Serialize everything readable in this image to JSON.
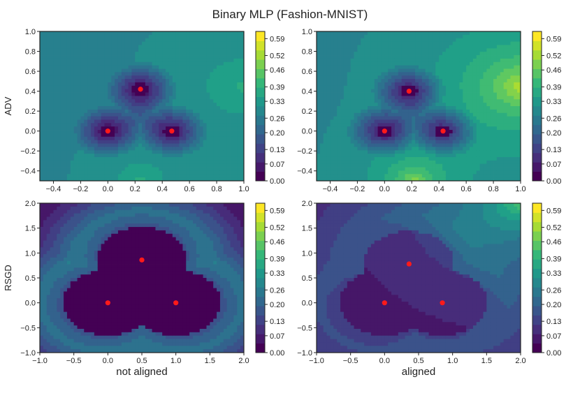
{
  "figure": {
    "title": "Binary MLP (Fashion-MNIST)",
    "colors": {
      "axis": "#222222",
      "marker": "#ff1a1a",
      "background": "#ffffff"
    }
  },
  "chart_data": [
    {
      "type": "heatmap",
      "panel": "top-left",
      "row_label": "ADV",
      "col_label": "",
      "xlim": [
        -0.5,
        1.0
      ],
      "ylim": [
        -0.5,
        1.0
      ],
      "xticks": [
        "−0.4",
        "−0.2",
        "0.0",
        "0.2",
        "0.4",
        "0.6",
        "0.8",
        "1.0"
      ],
      "xtick_values": [
        -0.4,
        -0.2,
        0.0,
        0.2,
        0.4,
        0.6,
        0.8,
        1.0
      ],
      "yticks": [
        "−0.4",
        "−0.2",
        "0.0",
        "0.2",
        "0.4",
        "0.6",
        "0.8",
        "1.0"
      ],
      "ytick_values": [
        -0.4,
        -0.2,
        0.0,
        0.2,
        0.4,
        0.6,
        0.8,
        1.0
      ],
      "points": [
        {
          "x": 0.0,
          "y": 0.0
        },
        {
          "x": 0.47,
          "y": 0.0
        },
        {
          "x": 0.24,
          "y": 0.42
        }
      ],
      "colorbar": {
        "ticks": [
          "0.00",
          "0.07",
          "0.13",
          "0.20",
          "0.26",
          "0.33",
          "0.39",
          "0.46",
          "0.52",
          "0.59"
        ],
        "min": 0.0,
        "max": 0.62
      },
      "field": {
        "base": 0.3,
        "center_bump": -0.12,
        "corner_tr": 0.1,
        "corner_bl": 0.0,
        "bottom_center": 0.1,
        "top_center": 0.05
      }
    },
    {
      "type": "heatmap",
      "panel": "top-right",
      "row_label": "",
      "col_label": "",
      "xlim": [
        -0.5,
        1.0
      ],
      "ylim": [
        -0.5,
        1.0
      ],
      "xticks": [
        "−0.4",
        "−0.2",
        "0.0",
        "0.2",
        "0.4",
        "0.6",
        "0.8",
        "1.0"
      ],
      "xtick_values": [
        -0.4,
        -0.2,
        0.0,
        0.2,
        0.4,
        0.6,
        0.8,
        1.0
      ],
      "yticks": [
        "−0.4",
        "−0.2",
        "0.0",
        "0.2",
        "0.4",
        "0.6",
        "0.8",
        "1.0"
      ],
      "ytick_values": [
        -0.4,
        -0.2,
        0.0,
        0.2,
        0.4,
        0.6,
        0.8,
        1.0
      ],
      "points": [
        {
          "x": 0.0,
          "y": 0.0
        },
        {
          "x": 0.43,
          "y": 0.0
        },
        {
          "x": 0.18,
          "y": 0.4
        }
      ],
      "colorbar": {
        "ticks": [
          "0.00",
          "0.07",
          "0.13",
          "0.20",
          "0.26",
          "0.33",
          "0.39",
          "0.46",
          "0.52",
          "0.59"
        ],
        "min": 0.0,
        "max": 0.62
      },
      "field": {
        "base": 0.3,
        "center_bump": -0.1,
        "corner_tr": 0.28,
        "corner_bl": 0.0,
        "bottom_center": 0.22,
        "top_center": 0.0
      }
    },
    {
      "type": "heatmap",
      "panel": "bottom-left",
      "row_label": "RSGD",
      "col_label": "not aligned",
      "xlim": [
        -1.0,
        2.0
      ],
      "ylim": [
        -1.0,
        2.0
      ],
      "xticks": [
        "−1.0",
        "−0.5",
        "0.0",
        "0.5",
        "1.0",
        "1.5",
        "2.0"
      ],
      "xtick_values": [
        -1.0,
        -0.5,
        0.0,
        0.5,
        1.0,
        1.5,
        2.0
      ],
      "yticks": [
        "−1.0",
        "−0.5",
        "0.0",
        "0.5",
        "1.0",
        "1.5",
        "2.0"
      ],
      "ytick_values": [
        -1.0,
        -0.5,
        0.0,
        0.5,
        1.0,
        1.5,
        2.0
      ],
      "points": [
        {
          "x": 0.0,
          "y": 0.0
        },
        {
          "x": 1.0,
          "y": 0.0
        },
        {
          "x": 0.5,
          "y": 0.86
        }
      ],
      "colorbar": {
        "ticks": [
          "0.00",
          "0.07",
          "0.13",
          "0.20",
          "0.26",
          "0.33",
          "0.39",
          "0.46",
          "0.52",
          "0.59"
        ],
        "min": 0.0,
        "max": 0.62
      },
      "field": {
        "base": 0.05,
        "ridge": 0.38
      }
    },
    {
      "type": "heatmap",
      "panel": "bottom-right",
      "row_label": "",
      "col_label": "aligned",
      "xlim": [
        -1.0,
        2.0
      ],
      "ylim": [
        -1.0,
        2.0
      ],
      "xticks": [
        "−1.0",
        "−0.5",
        "0.0",
        "0.5",
        "1.0",
        "1.5",
        "2.0"
      ],
      "xtick_values": [
        -1.0,
        -0.5,
        0.0,
        0.5,
        1.0,
        1.5,
        2.0
      ],
      "yticks": [
        "−1.0",
        "−0.5",
        "0.0",
        "0.5",
        "1.0",
        "1.5",
        "2.0"
      ],
      "ytick_values": [
        -1.0,
        -0.5,
        0.0,
        0.5,
        1.0,
        1.5,
        2.0
      ],
      "points": [
        {
          "x": 0.0,
          "y": 0.0
        },
        {
          "x": 0.85,
          "y": 0.0
        },
        {
          "x": 0.36,
          "y": 0.78
        }
      ],
      "colorbar": {
        "ticks": [
          "0.00",
          "0.07",
          "0.13",
          "0.20",
          "0.26",
          "0.33",
          "0.39",
          "0.46",
          "0.52",
          "0.59"
        ],
        "min": 0.0,
        "max": 0.62
      },
      "field": {
        "base": 0.09,
        "ridge": 0.12,
        "corner_tr": 0.38
      }
    }
  ]
}
